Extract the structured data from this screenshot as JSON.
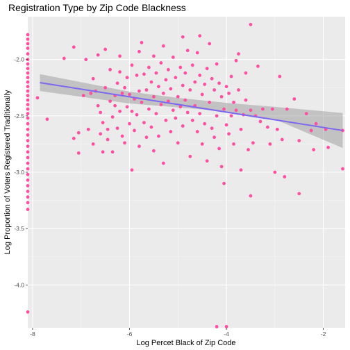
{
  "chart_data": {
    "type": "scatter",
    "title": "Registration Type by Zip Code Blackness",
    "xlabel": "Log Percet Black of Zip Code",
    "ylabel": "Log Proportion of Voters Registered Traditionally",
    "xlim": [
      -8.1,
      -1.55
    ],
    "ylim": [
      -4.38,
      -1.62
    ],
    "x_ticks": [
      -8,
      -6,
      -4,
      -2
    ],
    "x_tick_labels": [
      "-8",
      "-6",
      "-4",
      "-2"
    ],
    "y_ticks": [
      -4.0,
      -3.5,
      -3.0,
      -2.5,
      -2.0
    ],
    "y_tick_labels": [
      "-4.0",
      "-3.5",
      "-3.0",
      "-2.5",
      "-2.0"
    ],
    "grid": true,
    "legend": "none",
    "point_color": "#ff4fa2",
    "fit": {
      "method": "linear regression with confidence band",
      "color": "#7b68ee",
      "band_color": "#999999",
      "line": [
        [
          -7.85,
          -2.205
        ],
        [
          -1.6,
          -2.63
        ]
      ],
      "band_upper": [
        [
          -7.85,
          -2.13
        ],
        [
          -6.0,
          -2.285
        ],
        [
          -5.0,
          -2.34
        ],
        [
          -4.0,
          -2.385
        ],
        [
          -3.0,
          -2.42
        ],
        [
          -1.6,
          -2.475
        ]
      ],
      "band_lower": [
        [
          -7.85,
          -2.28
        ],
        [
          -6.0,
          -2.39
        ],
        [
          -5.0,
          -2.425
        ],
        [
          -4.0,
          -2.46
        ],
        [
          -3.0,
          -2.53
        ],
        [
          -1.6,
          -2.785
        ]
      ]
    },
    "points": [
      [
        -8.1,
        -1.78
      ],
      [
        -8.1,
        -1.82
      ],
      [
        -8.1,
        -1.86
      ],
      [
        -8.1,
        -1.9
      ],
      [
        -8.1,
        -1.95
      ],
      [
        -8.1,
        -2.0
      ],
      [
        -8.1,
        -2.04
      ],
      [
        -8.1,
        -2.08
      ],
      [
        -8.1,
        -2.12
      ],
      [
        -8.1,
        -2.16
      ],
      [
        -8.1,
        -2.2
      ],
      [
        -8.1,
        -2.24
      ],
      [
        -8.1,
        -2.28
      ],
      [
        -8.1,
        -2.32
      ],
      [
        -8.1,
        -2.36
      ],
      [
        -8.1,
        -2.4
      ],
      [
        -8.1,
        -2.44
      ],
      [
        -8.1,
        -2.48
      ],
      [
        -8.1,
        -2.52
      ],
      [
        -8.1,
        -2.57
      ],
      [
        -8.1,
        -2.62
      ],
      [
        -8.1,
        -2.67
      ],
      [
        -8.1,
        -2.72
      ],
      [
        -8.1,
        -2.77
      ],
      [
        -8.1,
        -2.82
      ],
      [
        -8.1,
        -2.87
      ],
      [
        -8.1,
        -2.92
      ],
      [
        -8.1,
        -2.97
      ],
      [
        -8.1,
        -3.02
      ],
      [
        -8.1,
        -3.07
      ],
      [
        -8.1,
        -3.12
      ],
      [
        -8.1,
        -3.17
      ],
      [
        -8.1,
        -3.22
      ],
      [
        -8.1,
        -3.27
      ],
      [
        -8.1,
        -3.33
      ],
      [
        -8.1,
        -4.24
      ],
      [
        -7.9,
        -2.34
      ],
      [
        -7.7,
        -2.53
      ],
      [
        -7.35,
        -1.99
      ],
      [
        -7.15,
        -1.89
      ],
      [
        -7.15,
        -2.7
      ],
      [
        -7.05,
        -2.65
      ],
      [
        -7.05,
        -2.83
      ],
      [
        -6.95,
        -2.32
      ],
      [
        -6.9,
        -2.0
      ],
      [
        -6.85,
        -2.62
      ],
      [
        -6.8,
        -2.3
      ],
      [
        -6.75,
        -2.17
      ],
      [
        -6.75,
        -2.75
      ],
      [
        -6.7,
        -2.28
      ],
      [
        -6.65,
        -1.96
      ],
      [
        -6.65,
        -2.41
      ],
      [
        -6.6,
        -2.47
      ],
      [
        -6.6,
        -2.66
      ],
      [
        -6.55,
        -2.56
      ],
      [
        -6.55,
        -2.82
      ],
      [
        -6.5,
        -2.25
      ],
      [
        -6.5,
        -1.91
      ],
      [
        -6.45,
        -2.62
      ],
      [
        -6.45,
        -2.71
      ],
      [
        -6.4,
        -2.09
      ],
      [
        -6.4,
        -2.37
      ],
      [
        -6.35,
        -2.51
      ],
      [
        -6.35,
        -2.82
      ],
      [
        -6.3,
        -2.32
      ],
      [
        -6.3,
        -2.41
      ],
      [
        -6.25,
        -2.21
      ],
      [
        -6.25,
        -2.61
      ],
      [
        -6.2,
        -2.11
      ],
      [
        -6.2,
        -2.46
      ],
      [
        -6.15,
        -2.3
      ],
      [
        -6.15,
        -2.68
      ],
      [
        -6.1,
        -2.25
      ],
      [
        -6.1,
        -2.74
      ],
      [
        -6.05,
        -2.16
      ],
      [
        -6.05,
        -2.42
      ],
      [
        -6.0,
        -2.31
      ],
      [
        -6.0,
        -2.57
      ],
      [
        -5.95,
        -2.05
      ],
      [
        -5.95,
        -2.46
      ],
      [
        -5.95,
        -2.98
      ],
      [
        -5.9,
        -2.35
      ],
      [
        -5.9,
        -2.63
      ],
      [
        -5.85,
        -2.14
      ],
      [
        -5.85,
        -2.49
      ],
      [
        -5.8,
        -2.28
      ],
      [
        -5.8,
        -2.77
      ],
      [
        -5.75,
        -1.85
      ],
      [
        -5.75,
        -2.38
      ],
      [
        -5.7,
        -2.13
      ],
      [
        -5.7,
        -2.56
      ],
      [
        -5.65,
        -2.27
      ],
      [
        -5.65,
        -2.69
      ],
      [
        -5.6,
        -2.07
      ],
      [
        -5.6,
        -2.44
      ],
      [
        -5.55,
        -2.2
      ],
      [
        -5.55,
        -2.6
      ],
      [
        -5.5,
        -1.97
      ],
      [
        -5.5,
        -2.33
      ],
      [
        -5.5,
        -2.81
      ],
      [
        -5.45,
        -2.12
      ],
      [
        -5.45,
        -2.48
      ],
      [
        -5.4,
        -2.24
      ],
      [
        -5.4,
        -2.68
      ],
      [
        -5.35,
        -2.03
      ],
      [
        -5.35,
        -2.4
      ],
      [
        -5.3,
        -2.3
      ],
      [
        -5.3,
        -2.92
      ],
      [
        -5.25,
        -2.18
      ],
      [
        -5.25,
        -2.54
      ],
      [
        -5.2,
        -2.09
      ],
      [
        -5.2,
        -2.37
      ],
      [
        -5.15,
        -2.26
      ],
      [
        -5.15,
        -2.64
      ],
      [
        -5.1,
        -1.98
      ],
      [
        -5.1,
        -2.45
      ],
      [
        -5.05,
        -2.16
      ],
      [
        -5.05,
        -2.52
      ],
      [
        -5.0,
        -2.33
      ],
      [
        -5.0,
        -2.74
      ],
      [
        -4.95,
        -2.07
      ],
      [
        -4.95,
        -2.42
      ],
      [
        -4.9,
        -2.23
      ],
      [
        -4.9,
        -2.59
      ],
      [
        -4.85,
        -2.12
      ],
      [
        -4.85,
        -2.36
      ],
      [
        -4.8,
        -1.92
      ],
      [
        -4.8,
        -2.47
      ],
      [
        -4.75,
        -2.27
      ],
      [
        -4.75,
        -2.86
      ],
      [
        -4.7,
        -2.05
      ],
      [
        -4.7,
        -2.54
      ],
      [
        -4.65,
        -2.2
      ],
      [
        -4.65,
        -2.41
      ],
      [
        -4.6,
        -1.94
      ],
      [
        -4.6,
        -2.64
      ],
      [
        -4.55,
        -2.14
      ],
      [
        -4.55,
        -2.48
      ],
      [
        -4.5,
        -2.31
      ],
      [
        -4.5,
        -2.75
      ],
      [
        -4.45,
        -2.22
      ],
      [
        -4.45,
        -2.57
      ],
      [
        -4.4,
        -2.08
      ],
      [
        -4.4,
        -2.9
      ],
      [
        -4.35,
        -1.86
      ],
      [
        -4.35,
        -2.38
      ],
      [
        -4.3,
        -2.17
      ],
      [
        -4.3,
        -2.61
      ],
      [
        -4.25,
        -2.27
      ],
      [
        -4.25,
        -2.69
      ],
      [
        -4.2,
        -2.04
      ],
      [
        -4.2,
        -2.5
      ],
      [
        -4.15,
        -2.21
      ],
      [
        -4.15,
        -2.79
      ],
      [
        -4.1,
        -2.33
      ],
      [
        -4.1,
        -2.95
      ],
      [
        -4.05,
        -2.44
      ],
      [
        -4.05,
        -3.1
      ],
      [
        -4.0,
        -2.24
      ],
      [
        -4.0,
        -2.58
      ],
      [
        -3.95,
        -2.3
      ],
      [
        -3.95,
        -2.66
      ],
      [
        -3.9,
        -2.15
      ],
      [
        -3.9,
        -2.5
      ],
      [
        -3.85,
        -2.38
      ],
      [
        -3.85,
        -2.75
      ],
      [
        -3.8,
        -2.01
      ],
      [
        -3.8,
        -2.45
      ],
      [
        -3.75,
        -1.95
      ],
      [
        -3.75,
        -2.27
      ],
      [
        -3.7,
        -2.62
      ],
      [
        -3.7,
        -2.98
      ],
      [
        -3.65,
        -2.49
      ],
      [
        -3.6,
        -2.12
      ],
      [
        -3.6,
        -2.36
      ],
      [
        -3.55,
        -2.8
      ],
      [
        -3.5,
        -1.69
      ],
      [
        -3.5,
        -2.45
      ],
      [
        -3.45,
        -2.74
      ],
      [
        -3.4,
        -2.5
      ],
      [
        -3.35,
        -2.06
      ],
      [
        -3.3,
        -2.55
      ],
      [
        -3.25,
        -2.44
      ],
      [
        -3.15,
        -2.6
      ],
      [
        -3.1,
        -2.75
      ],
      [
        -3.05,
        -2.44
      ],
      [
        -2.95,
        -2.62
      ],
      [
        -2.9,
        -2.15
      ],
      [
        -2.85,
        -2.71
      ],
      [
        -2.8,
        -3.04
      ],
      [
        -2.75,
        -2.44
      ],
      [
        -2.6,
        -2.35
      ],
      [
        -2.5,
        -2.72
      ],
      [
        -2.35,
        -2.48
      ],
      [
        -2.25,
        -2.63
      ],
      [
        -2.2,
        -2.8
      ],
      [
        -2.15,
        -2.57
      ],
      [
        -1.95,
        -2.62
      ],
      [
        -1.9,
        -2.78
      ],
      [
        -1.6,
        -2.63
      ],
      [
        -1.6,
        -2.97
      ],
      [
        -3.5,
        -3.21
      ],
      [
        -3.0,
        -3.0
      ],
      [
        -2.5,
        -3.19
      ],
      [
        -4.2,
        -4.37
      ],
      [
        -4.0,
        -4.37
      ],
      [
        -4.55,
        -1.79
      ],
      [
        -4.9,
        -1.8
      ],
      [
        -5.3,
        -1.88
      ],
      [
        -5.8,
        -1.93
      ],
      [
        -6.2,
        -1.97
      ]
    ]
  }
}
